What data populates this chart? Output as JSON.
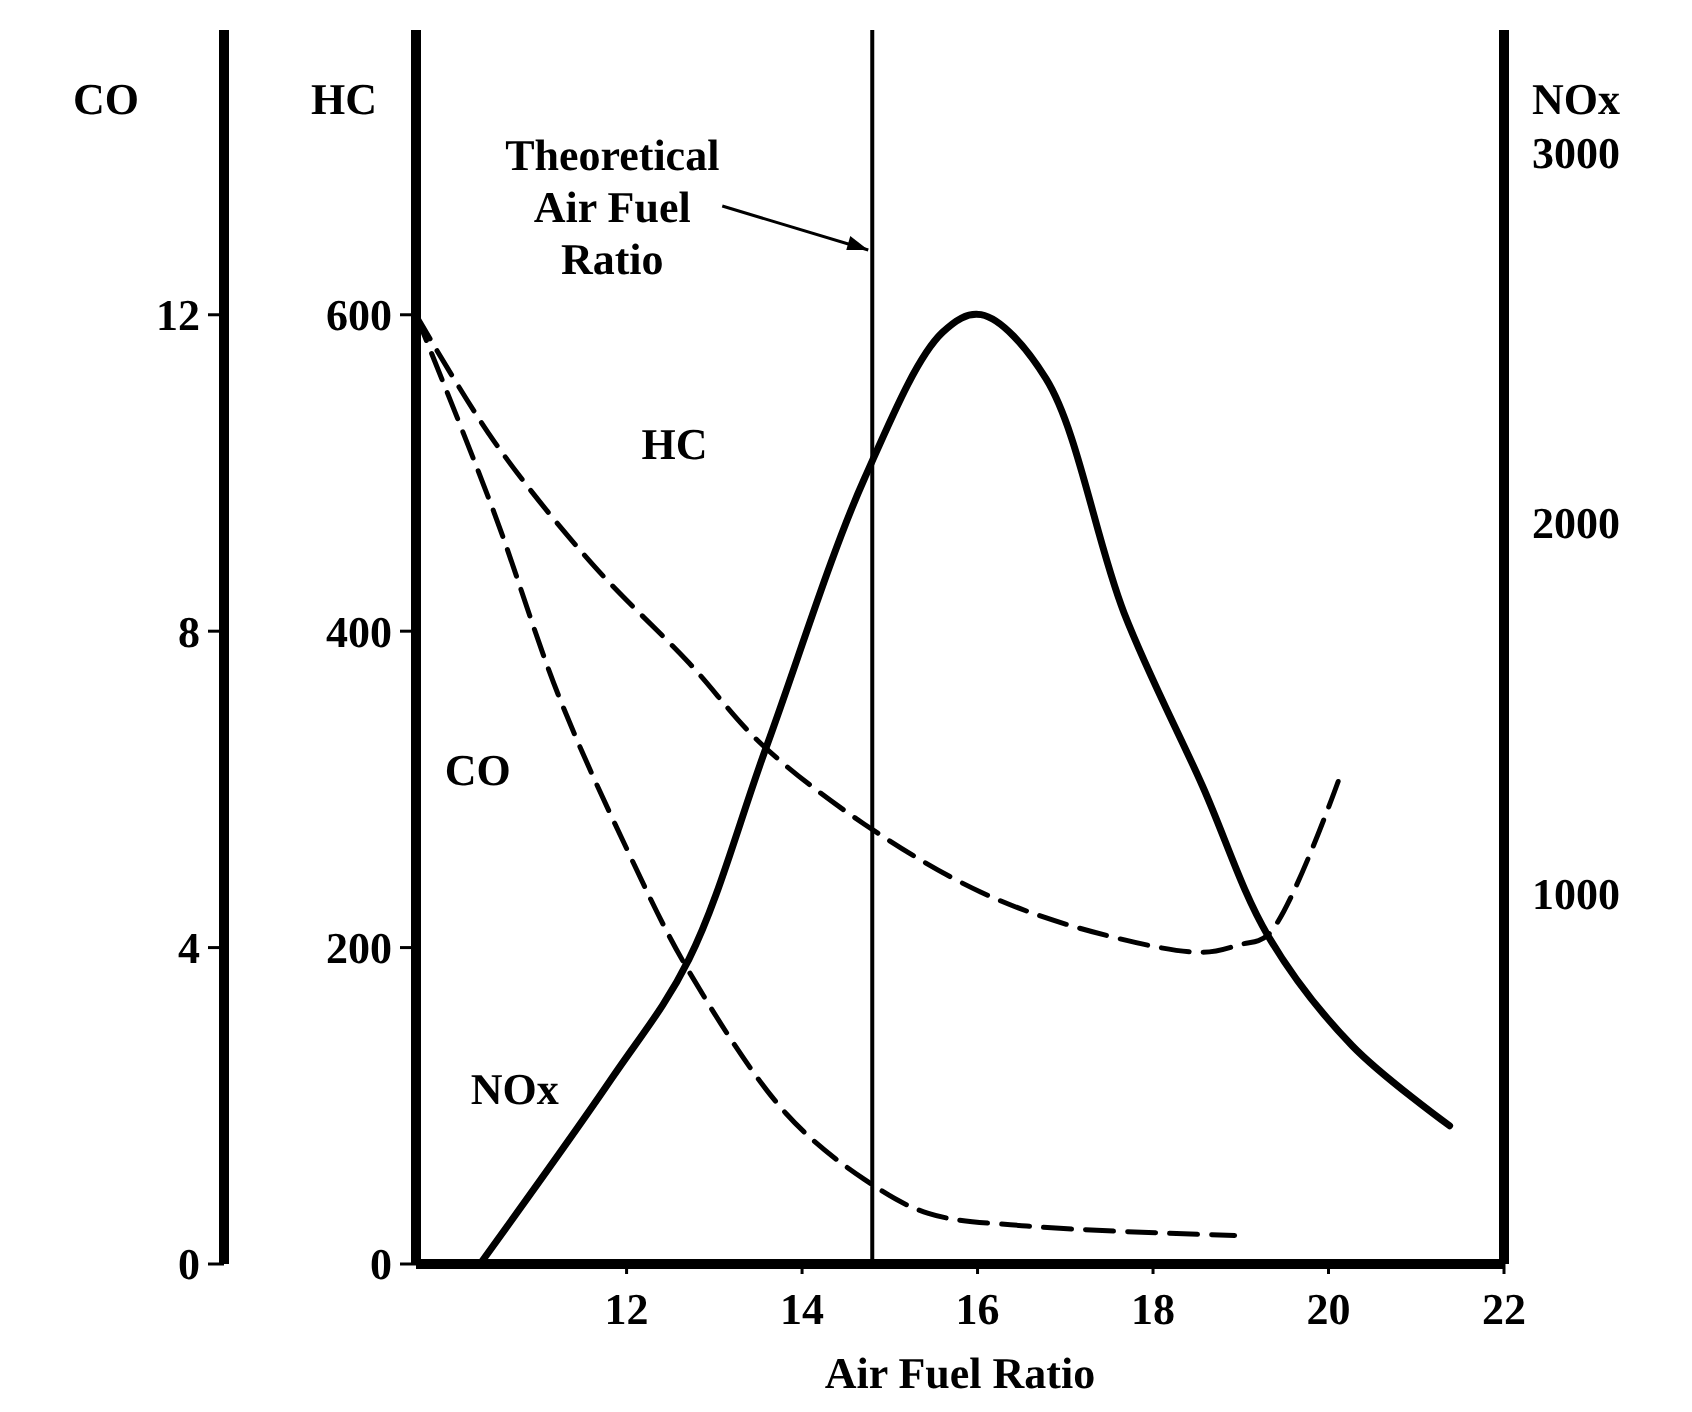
{
  "chart_data": {
    "type": "line",
    "xlabel": "Air Fuel Ratio",
    "ylabel": "HC",
    "y2label": "NOx",
    "y3label": "CO",
    "xlim": [
      9.6,
      22
    ],
    "xticks": [
      12,
      14,
      16,
      18,
      20,
      22
    ],
    "ylim": [
      0,
      780
    ],
    "yticks": [
      0,
      200,
      400,
      600
    ],
    "y2lim": [
      0,
      3330
    ],
    "y2ticks": [
      1000,
      2000,
      3000
    ],
    "y3lim": [
      0,
      15.6
    ],
    "y3ticks": [
      0,
      4,
      8,
      12
    ],
    "marker": "none",
    "ref_lines": [
      {
        "axis": "x",
        "value": 14.8,
        "label": "Theoretical\nAir Fuel\nRatio",
        "color": "#000000",
        "line_style": "solid"
      }
    ],
    "series": [
      {
        "name": "HC",
        "color": "#000000",
        "line_style": "dashed",
        "x": [
          9.6,
          10.49,
          11.6,
          12.71,
          13.53,
          14.71,
          16.04,
          17.31,
          18.56,
          19.0,
          19.31,
          20.11
        ],
        "values": [
          600,
          520,
          443,
          380,
          329,
          278,
          235,
          210,
          197,
          202,
          208,
          305
        ]
      },
      {
        "name": "CO",
        "color": "#000000",
        "line_style": "dashed",
        "axis": "y3",
        "x": [
          9.6,
          10.49,
          11.22,
          11.98,
          12.71,
          13.82,
          14.71,
          15.44,
          16.56,
          18.93
        ],
        "values": [
          12,
          9.5,
          7.2,
          5.3,
          3.7,
          1.9,
          1.07,
          0.64,
          0.48,
          0.36
        ]
      },
      {
        "name": "NOx",
        "color": "#000000",
        "line_style": "solid",
        "axis": "y2",
        "x": [
          10.33,
          11.82,
          12.71,
          13.6,
          14.71,
          15.6,
          16.04,
          16.78,
          17.67,
          18.56,
          19.31,
          20.27,
          21.38
        ],
        "values": [
          0,
          497,
          822,
          1400,
          2119,
          2514,
          2562,
          2389,
          1757,
          1292,
          886,
          589,
          373
        ]
      }
    ]
  }
}
